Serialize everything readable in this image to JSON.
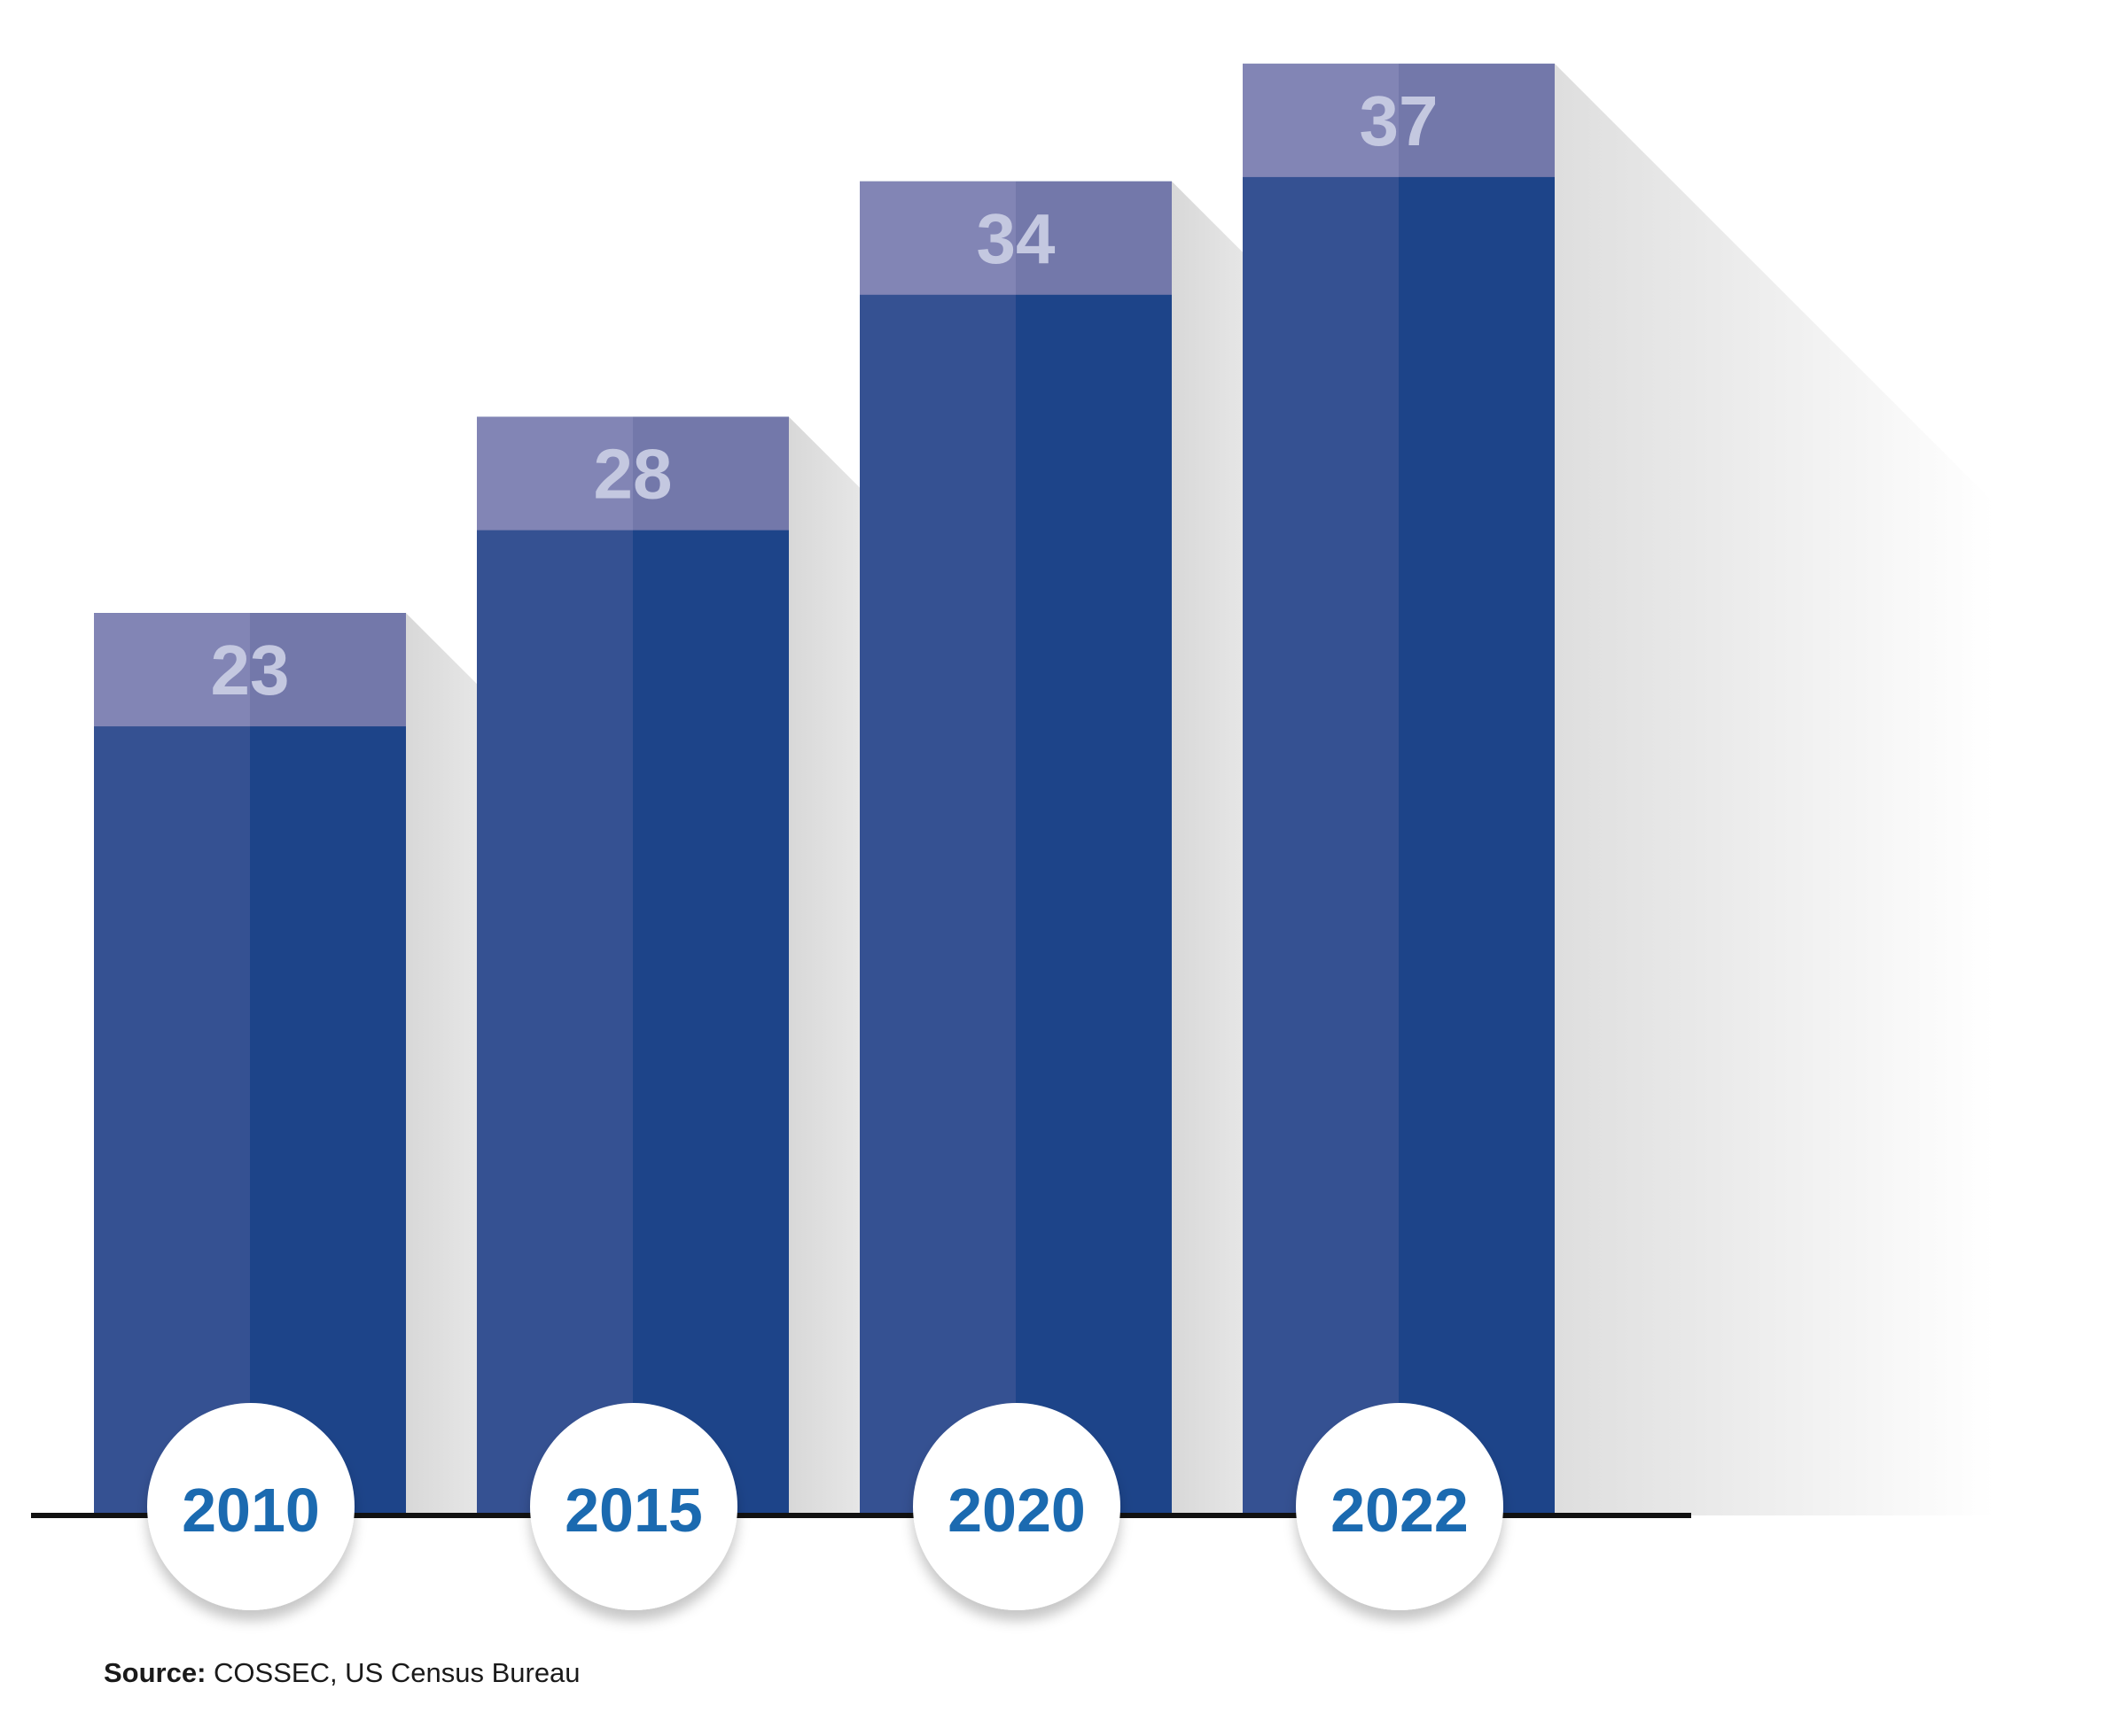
{
  "chart_data": {
    "type": "bar",
    "categories": [
      "2010",
      "2015",
      "2020",
      "2022"
    ],
    "values": [
      23,
      28,
      34,
      37
    ],
    "title": "",
    "xlabel": "",
    "ylabel": "",
    "ylim": [
      0,
      37
    ],
    "grid": false,
    "legend": "none",
    "colors": {
      "bar_left": "#355192",
      "bar_right": "#1d4489",
      "cap_left": "#8285b5",
      "cap_right": "#7378aa",
      "value_label": "#c4c8e0",
      "category_label": "#1b6ab0",
      "shadow": "#e2e2e2",
      "baseline": "#111111"
    }
  },
  "source": {
    "label": "Source:",
    "text": " COSSEC, US Census Bureau"
  }
}
